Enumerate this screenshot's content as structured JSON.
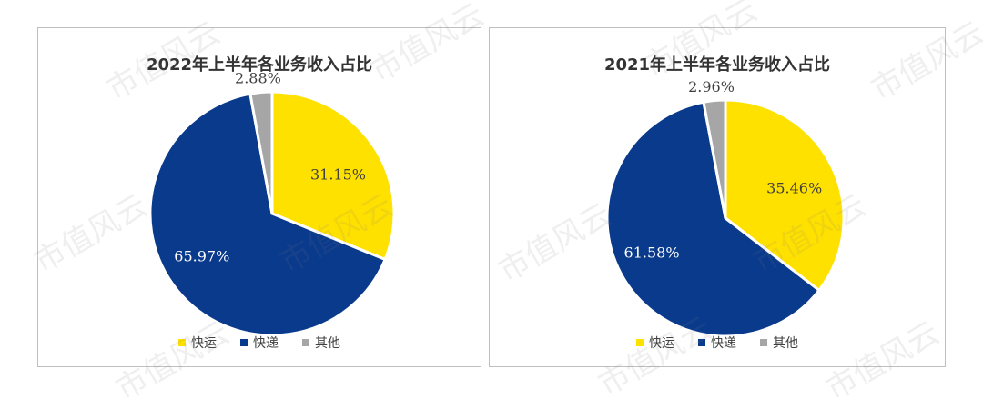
{
  "chart_data": [
    {
      "type": "pie",
      "title": "2022年上半年各业务收入占比",
      "categories": [
        "快运",
        "快递",
        "其他"
      ],
      "values": [
        31.15,
        65.97,
        2.88
      ],
      "labels": [
        "31.15%",
        "65.97%",
        "2.88%"
      ],
      "colors": [
        "#FFE100",
        "#0A3A8C",
        "#A6A6A6"
      ],
      "legend_position": "bottom"
    },
    {
      "type": "pie",
      "title": "2021年上半年各业务收入占比",
      "categories": [
        "快运",
        "快递",
        "其他"
      ],
      "values": [
        35.46,
        61.58,
        2.96
      ],
      "labels": [
        "35.46%",
        "61.58%",
        "2.96%"
      ],
      "colors": [
        "#FFE100",
        "#0A3A8C",
        "#A6A6A6"
      ],
      "legend_position": "bottom"
    }
  ],
  "watermark": "市值风云"
}
